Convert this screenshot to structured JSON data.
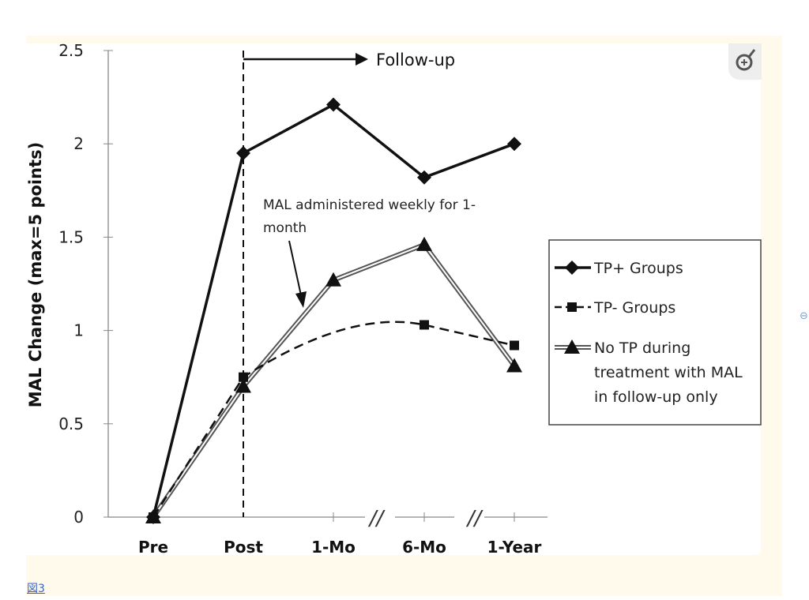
{
  "caption": "図3",
  "chart_data": {
    "type": "line",
    "ylabel": "MAL Change (max=5 points)",
    "xlabel": "",
    "ylim": [
      0,
      2.5
    ],
    "yticks": [
      "0",
      "0.5",
      "1",
      "1.5",
      "2",
      "2.5"
    ],
    "categories": [
      "Pre",
      "Post",
      "1-Mo",
      "6-Mo",
      "1-Year"
    ],
    "series": [
      {
        "name": "TP+ Groups",
        "values": [
          0,
          1.95,
          2.21,
          1.82,
          2.0
        ],
        "style": "solid",
        "marker": "diamond"
      },
      {
        "name": "TP- Groups",
        "values": [
          0,
          0.75,
          null,
          1.03,
          0.92
        ],
        "style": "dashed",
        "marker": "square"
      },
      {
        "name": "No TP during treatment with MAL in follow-up only",
        "values": [
          0,
          0.7,
          1.27,
          1.46,
          0.81
        ],
        "style": "double",
        "marker": "triangle"
      }
    ],
    "legend_lines": [
      [
        "TP+ Groups"
      ],
      [
        "TP- Groups"
      ],
      [
        "No TP during",
        "treatment with MAL",
        "in follow-up only"
      ]
    ],
    "legend_position": "right",
    "annotations": {
      "followup": "Follow-up",
      "mal_weekly_1": "MAL administered weekly for 1-",
      "mal_weekly_2": "month"
    },
    "axis_break": "//"
  }
}
